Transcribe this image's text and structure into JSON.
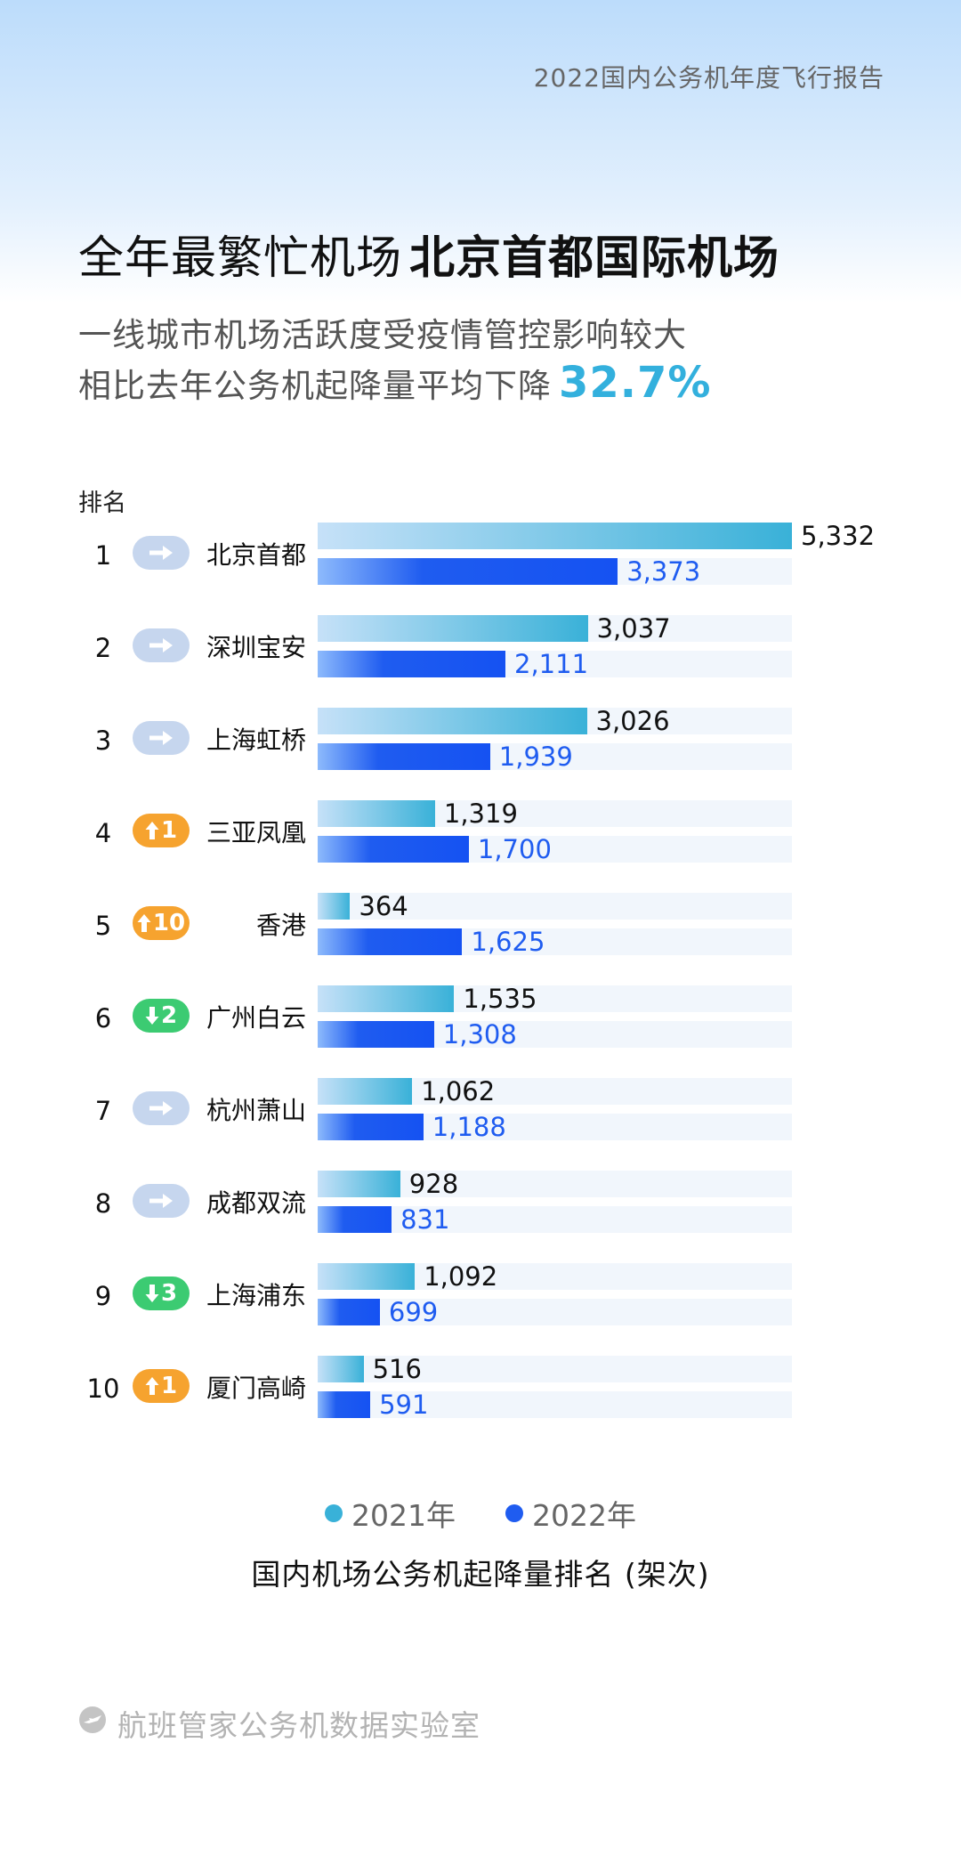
{
  "report_title": "2022国内公务机年度飞行报告",
  "headline": {
    "prefix": "全年最繁忙机场",
    "highlight": "北京首都国际机场"
  },
  "subtitle_line1": "一线城市机场活跃度受疫情管控影响较大",
  "subtitle_line2": {
    "text": "相比去年公务机起降量平均下降",
    "percent": "32.7%"
  },
  "colors": {
    "y2021": "#39b1d8",
    "y2022": "#1f5cf0",
    "rank_same": "#c6d6ee",
    "rank_up": "#f6a32f",
    "rank_down": "#3ccb72"
  },
  "chart_data": {
    "type": "bar",
    "orientation": "horizontal",
    "title": "国内机场公务机起降量排名 (架次)",
    "rank_header": "排名",
    "categories": [
      "北京首都",
      "深圳宝安",
      "上海虹桥",
      "三亚凤凰",
      "香港",
      "广州白云",
      "杭州萧山",
      "成都双流",
      "上海浦东",
      "厦门高崎"
    ],
    "ranks": [
      "1",
      "2",
      "3",
      "4",
      "5",
      "6",
      "7",
      "8",
      "9",
      "10"
    ],
    "rank_change": [
      {
        "dir": "same",
        "text": ""
      },
      {
        "dir": "same",
        "text": ""
      },
      {
        "dir": "same",
        "text": ""
      },
      {
        "dir": "up",
        "text": "1"
      },
      {
        "dir": "up",
        "text": "10"
      },
      {
        "dir": "down",
        "text": "2"
      },
      {
        "dir": "same",
        "text": ""
      },
      {
        "dir": "same",
        "text": ""
      },
      {
        "dir": "down",
        "text": "3"
      },
      {
        "dir": "up",
        "text": "1"
      }
    ],
    "series": [
      {
        "name": "2021年",
        "values": [
          5332,
          3037,
          3026,
          1319,
          364,
          1535,
          1062,
          928,
          1092,
          516
        ]
      },
      {
        "name": "2022年",
        "values": [
          3373,
          2111,
          1939,
          1700,
          1625,
          1308,
          1188,
          831,
          699,
          591
        ]
      }
    ],
    "xlim": [
      0,
      5332
    ],
    "legend_position": "bottom"
  },
  "footer": {
    "icon": "plane-logo-icon",
    "text": "航班管家公务机数据实验室"
  }
}
